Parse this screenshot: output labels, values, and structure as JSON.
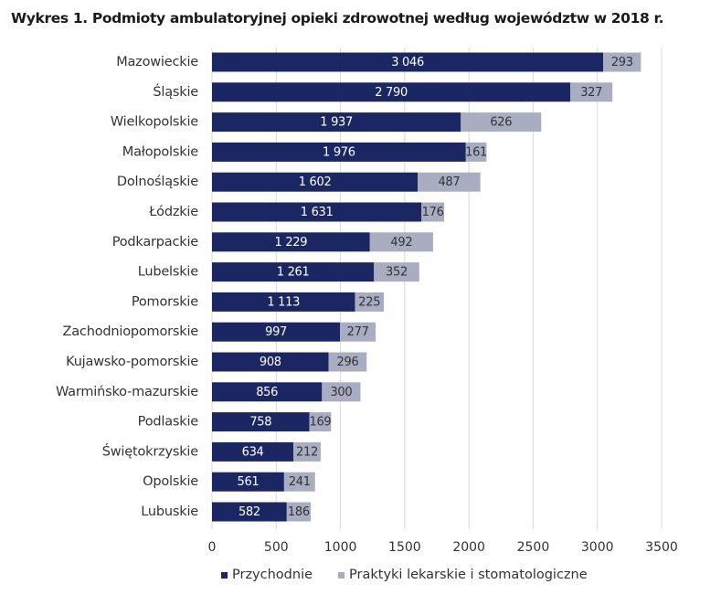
{
  "title": "Wykres 1. Podmioty ambulatoryjnej opieki zdrowotnej według województw w 2018 r.",
  "colors": {
    "series1": "#1b2763",
    "series2": "#a9adc2",
    "grid": "#d9d9d9",
    "label_on_dark": "#ffffff",
    "label_on_light": "#333333"
  },
  "chart_data": {
    "type": "bar",
    "orientation": "horizontal",
    "stacked": true,
    "categories": [
      "Mazowieckie",
      "Śląskie",
      "Wielkopolskie",
      "Małopolskie",
      "Dolnośląskie",
      "Łódzkie",
      "Podkarpackie",
      "Lubelskie",
      "Pomorskie",
      "Zachodniopomorskie",
      "Kujawsko-pomorskie",
      "Warmińsko-mazurskie",
      "Podlaskie",
      "Świętokrzyskie",
      "Opolskie",
      "Lubuskie"
    ],
    "series": [
      {
        "name": "Przychodnie",
        "values": [
          3046,
          2790,
          1937,
          1976,
          1602,
          1631,
          1229,
          1261,
          1113,
          997,
          908,
          856,
          758,
          634,
          561,
          582
        ],
        "labels": [
          "3 046",
          "2 790",
          "1 937",
          "1 976",
          "1 602",
          "1 631",
          "1 229",
          "1 261",
          "1 113",
          "997",
          "908",
          "856",
          "758",
          "634",
          "561",
          "582"
        ]
      },
      {
        "name": "Praktyki lekarskie i stomatologiczne",
        "values": [
          293,
          327,
          626,
          161,
          487,
          176,
          492,
          352,
          225,
          277,
          296,
          300,
          169,
          212,
          241,
          186
        ],
        "labels": [
          "293",
          "327",
          "626",
          "161",
          "487",
          "176",
          "492",
          "352",
          "225",
          "277",
          "296",
          "300",
          "169",
          "212",
          "241",
          "186"
        ]
      }
    ],
    "xlim": [
      0,
      3500
    ],
    "xticks": [
      0,
      500,
      1000,
      1500,
      2000,
      2500,
      3000,
      3500
    ],
    "xtick_labels": [
      "0",
      "500",
      "1000",
      "1500",
      "2000",
      "2500",
      "3000",
      "3500"
    ],
    "grid": true,
    "legend_position": "bottom"
  }
}
